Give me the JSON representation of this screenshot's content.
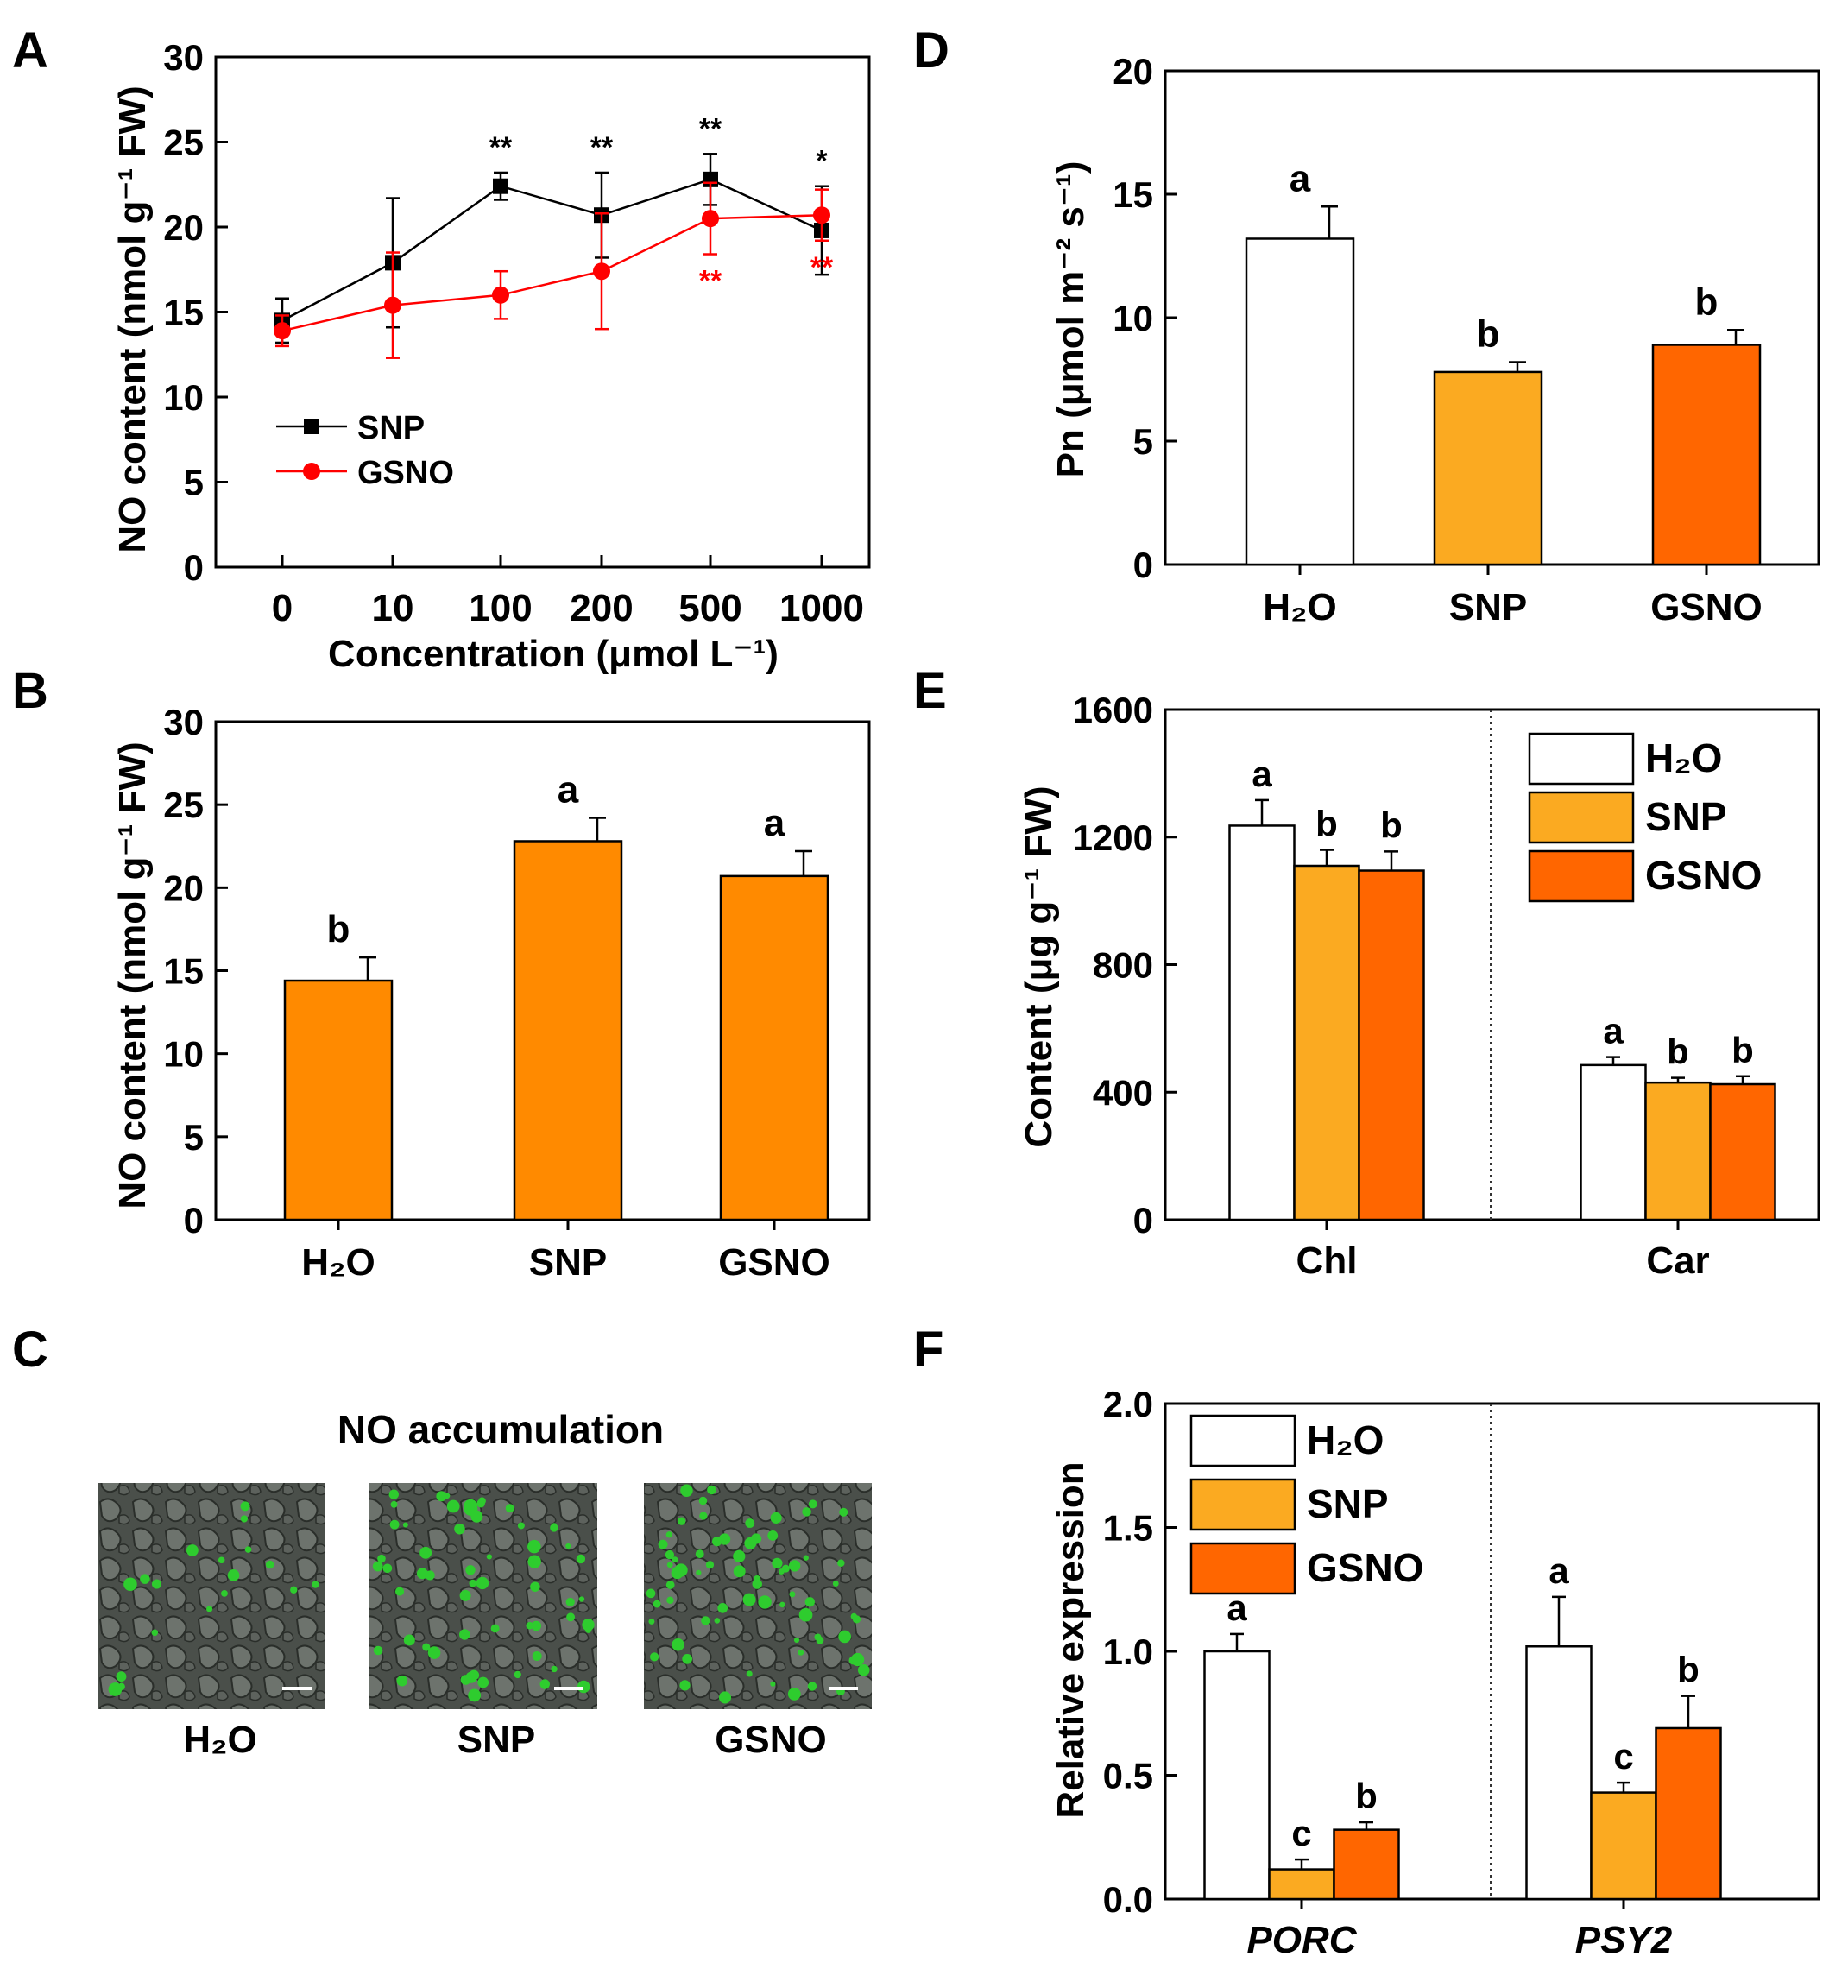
{
  "colors": {
    "h2o": "#ffffff",
    "snp_bar": "#fbaa21",
    "gsno_bar": "#ff6600",
    "panel_b_bar": "#ff8a00",
    "snp_line": "#000000",
    "gsno_line": "#ff0000",
    "micrograph_green": "#2ecc2e"
  },
  "chart_data": [
    {
      "panel": "A",
      "type": "line",
      "xlabel": "Concentration (μmol L⁻¹)",
      "ylabel": "NO content (nmol g⁻¹ FW)",
      "categories": [
        "0",
        "10",
        "100",
        "200",
        "500",
        "1000"
      ],
      "ylim": [
        0,
        30
      ],
      "yticks": [
        "0",
        "5",
        "10",
        "15",
        "20",
        "25",
        "30"
      ],
      "series": [
        {
          "name": "SNP",
          "marker": "square-icon",
          "values": [
            14.5,
            17.9,
            22.4,
            20.7,
            22.8,
            19.8
          ],
          "errors": [
            1.3,
            3.8,
            0.8,
            2.5,
            1.5,
            2.6
          ],
          "sig": [
            "",
            "",
            "**",
            "**",
            "**",
            "*"
          ]
        },
        {
          "name": "GSNO",
          "marker": "circle-icon",
          "values": [
            13.9,
            15.4,
            16.0,
            17.4,
            20.5,
            20.7
          ],
          "errors": [
            0.9,
            3.1,
            1.4,
            3.4,
            2.1,
            1.5
          ],
          "sig": [
            "",
            "",
            "",
            "",
            "**",
            "**"
          ]
        }
      ],
      "legend": [
        "SNP",
        "GSNO"
      ]
    },
    {
      "panel": "B",
      "type": "bar",
      "ylabel": "NO content (nmol g⁻¹ FW)",
      "categories": [
        "H₂O",
        "SNP",
        "GSNO"
      ],
      "values": [
        14.4,
        22.8,
        20.7
      ],
      "errors": [
        1.4,
        1.4,
        1.5
      ],
      "letters": [
        "b",
        "a",
        "a"
      ],
      "ylim": [
        0,
        30
      ],
      "yticks": [
        "0",
        "5",
        "10",
        "15",
        "20",
        "25",
        "30"
      ]
    },
    {
      "panel": "D",
      "type": "bar",
      "ylabel": "Pn (μmol m⁻² s⁻¹)",
      "categories": [
        "H₂O",
        "SNP",
        "GSNO"
      ],
      "values": [
        13.2,
        7.8,
        8.9
      ],
      "errors": [
        1.3,
        0.4,
        0.6
      ],
      "letters": [
        "a",
        "b",
        "b"
      ],
      "ylim": [
        0,
        20
      ],
      "yticks": [
        "0",
        "5",
        "10",
        "15",
        "20"
      ]
    },
    {
      "panel": "E",
      "type": "bar",
      "ylabel": "Content (μg g⁻¹ FW)",
      "groups": [
        "Chl",
        "Car"
      ],
      "series": [
        {
          "name": "H₂O",
          "values": [
            1236,
            485
          ],
          "errors": [
            80,
            25
          ],
          "letters": [
            "a",
            "a"
          ]
        },
        {
          "name": "SNP",
          "values": [
            1110,
            430
          ],
          "errors": [
            50,
            15
          ],
          "letters": [
            "b",
            "b"
          ]
        },
        {
          "name": "GSNO",
          "values": [
            1095,
            425
          ],
          "errors": [
            60,
            25
          ],
          "letters": [
            "b",
            "b"
          ]
        }
      ],
      "ylim": [
        0,
        1600
      ],
      "yticks": [
        "0",
        "400",
        "800",
        "1200",
        "1600"
      ],
      "legend": [
        "H₂O",
        "SNP",
        "GSNO"
      ]
    },
    {
      "panel": "F",
      "type": "bar",
      "ylabel": "Relative expression",
      "groups": [
        "PORC",
        "PSY2"
      ],
      "series": [
        {
          "name": "H₂O",
          "values": [
            1.0,
            1.02
          ],
          "errors": [
            0.07,
            0.2
          ],
          "letters": [
            "a",
            "a"
          ]
        },
        {
          "name": "SNP",
          "values": [
            0.12,
            0.43
          ],
          "errors": [
            0.04,
            0.04
          ],
          "letters": [
            "c",
            "c"
          ]
        },
        {
          "name": "GSNO",
          "values": [
            0.28,
            0.69
          ],
          "errors": [
            0.03,
            0.13
          ],
          "letters": [
            "b",
            "b"
          ]
        }
      ],
      "ylim": [
        0,
        2.0
      ],
      "yticks": [
        "0.0",
        "0.5",
        "1.0",
        "1.5",
        "2.0"
      ],
      "legend": [
        "H₂O",
        "SNP",
        "GSNO"
      ]
    }
  ],
  "panel_c": {
    "letter": "C",
    "title": "NO accumulation",
    "images": [
      {
        "label": "H₂O",
        "icon": "micrograph-h2o-icon"
      },
      {
        "label": "SNP",
        "icon": "micrograph-snp-icon"
      },
      {
        "label": "GSNO",
        "icon": "micrograph-gsno-icon"
      }
    ]
  },
  "panel_letters": {
    "a": "A",
    "b": "B",
    "d": "D",
    "e": "E",
    "f": "F"
  }
}
